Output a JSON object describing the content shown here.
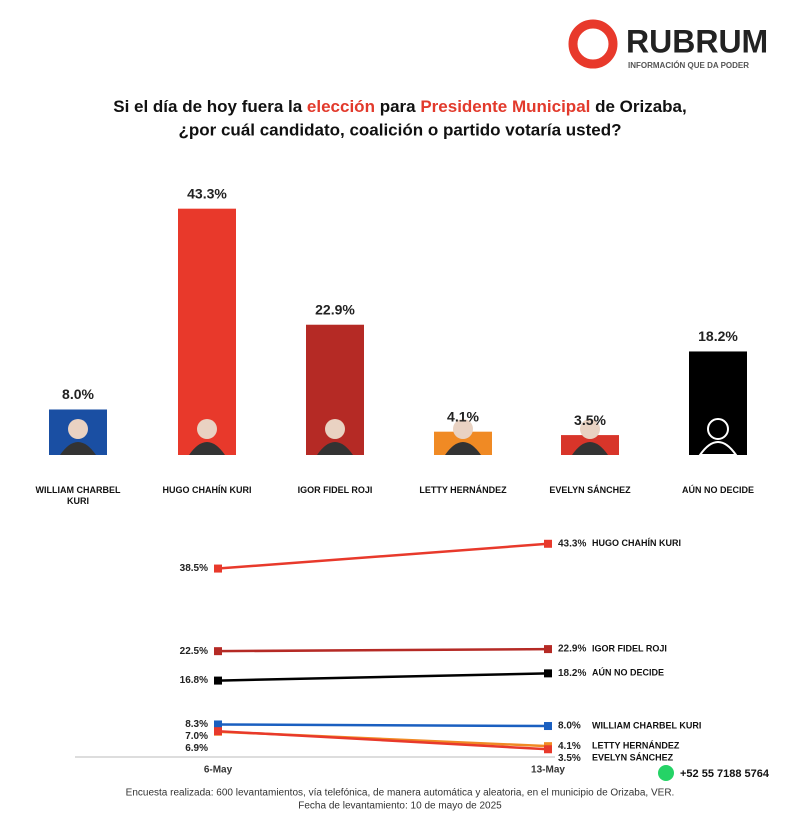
{
  "header": {
    "logo": "RUBRUM",
    "tagline": "INFORMACIÓN QUE DA PODER",
    "title_line1": [
      {
        "text": "Si el día de hoy fuera la ",
        "color": "#111111"
      },
      {
        "text": "elección",
        "color": "#e23a2c"
      },
      {
        "text": " para ",
        "color": "#111111"
      },
      {
        "text": "Presidente Municipal",
        "color": "#e23a2c"
      },
      {
        "text": " de Orizaba,",
        "color": "#111111"
      }
    ],
    "title_line2": "¿por cuál candidato, coalición o partido votaría usted?"
  },
  "chart_data": [
    {
      "type": "bar",
      "categories": [
        "WILLIAM CHARBEL KURI",
        "HUGO CHAHÍN KURI",
        "IGOR FIDEL ROJI",
        "LETTY HERNÁNDEZ",
        "EVELYN SÁNCHEZ",
        "AÚN NO DECIDE"
      ],
      "values": [
        8.0,
        43.3,
        22.9,
        4.1,
        3.5,
        18.2
      ],
      "value_labels": [
        "8.0%",
        "43.3%",
        "22.9%",
        "4.1%",
        "3.5%",
        "18.2%"
      ],
      "colors": [
        "#1a4fa3",
        "#e8392b",
        "#b52a25",
        "#f08a24",
        "#d8352a",
        "#000000"
      ],
      "ylim": [
        0,
        45
      ]
    },
    {
      "type": "line",
      "x": [
        "6-May",
        "13-May"
      ],
      "ylim": [
        2,
        45
      ],
      "series": [
        {
          "name": "HUGO CHAHÍN KURI",
          "color": "#e8392b",
          "values": [
            38.5,
            43.3
          ],
          "value_labels": [
            "38.5%",
            "43.3%"
          ]
        },
        {
          "name": "IGOR FIDEL ROJI",
          "color": "#b52a25",
          "values": [
            22.5,
            22.9
          ],
          "value_labels": [
            "22.5%",
            "22.9%"
          ]
        },
        {
          "name": "AÚN NO DECIDE",
          "color": "#000000",
          "values": [
            16.8,
            18.2
          ],
          "value_labels": [
            "16.8%",
            "18.2%"
          ]
        },
        {
          "name": "WILLIAM CHARBEL KURI",
          "color": "#1a5fc0",
          "values": [
            8.3,
            8.0
          ],
          "value_labels": [
            "8.3%",
            "8.0%"
          ]
        },
        {
          "name": "LETTY HERNÁNDEZ",
          "color": "#f08a24",
          "values": [
            6.9,
            4.1
          ],
          "value_labels": [
            "6.9%",
            "4.1%"
          ]
        },
        {
          "name": "EVELYN SÁNCHEZ",
          "color": "#e8392b",
          "values": [
            7.0,
            3.5
          ],
          "value_labels": [
            "7.0%",
            "3.5%"
          ]
        }
      ]
    }
  ],
  "footer": {
    "phone": "+52 55 7188 5764",
    "note": "Encuesta realizada: 600 levantamientos, vía telefónica, de manera automática y aleatoria, en el municipio de Orizaba, VER.",
    "date": "Fecha de levantamiento: 10 de mayo de 2025"
  }
}
